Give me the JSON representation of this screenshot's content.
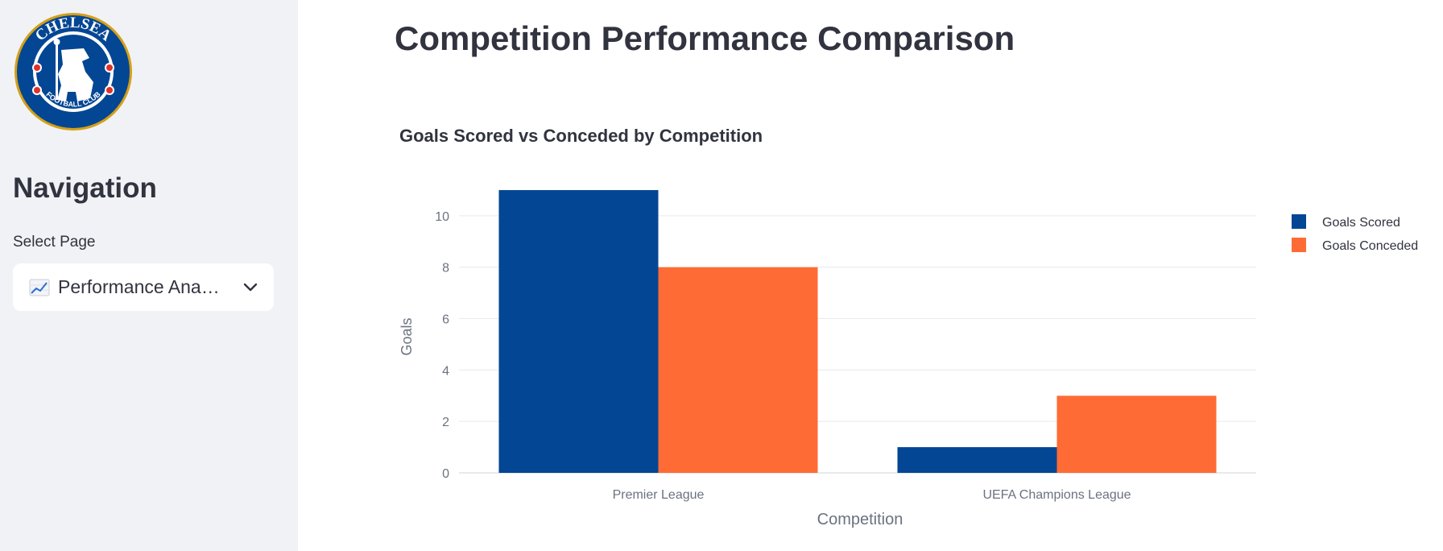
{
  "sidebar": {
    "logo_text_top": "CHELSEA",
    "logo_text_bottom": "FOOTBALL CLUB",
    "nav_title": "Navigation",
    "select_label": "Select Page",
    "select_value": "Performance Ana…",
    "select_icon": "chart-increasing-icon"
  },
  "main": {
    "page_title": "Competition Performance Comparison"
  },
  "colors": {
    "goals_scored": "#034694",
    "goals_conceded": "#ff6b35",
    "grid": "#e6e9ef",
    "tick": "#6b7280"
  },
  "chart_data": {
    "type": "bar",
    "title": "Goals Scored vs Conceded by Competition",
    "xlabel": "Competition",
    "ylabel": "Goals",
    "categories": [
      "Premier League",
      "UEFA Champions League"
    ],
    "series": [
      {
        "name": "Goals Scored",
        "values": [
          11,
          1
        ]
      },
      {
        "name": "Goals Conceded",
        "values": [
          8,
          3
        ]
      }
    ],
    "ylim": [
      0,
      11.5
    ],
    "yticks": [
      0,
      2,
      4,
      6,
      8,
      10
    ],
    "grid": true,
    "legend": "top-right"
  }
}
